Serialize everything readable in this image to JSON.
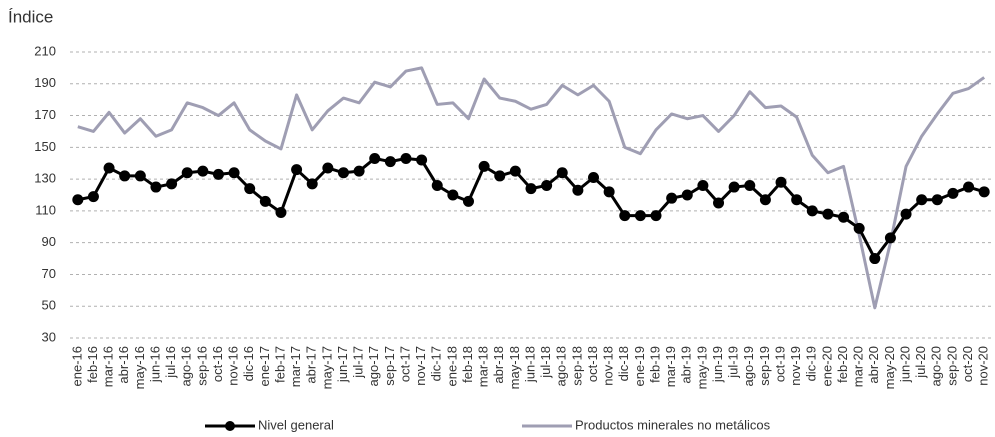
{
  "chart_data": {
    "type": "line",
    "y_label": "Índice",
    "categories": [
      "ene-16",
      "feb-16",
      "mar-16",
      "abr-16",
      "may-16",
      "jun-16",
      "jul-16",
      "ago-16",
      "sep-16",
      "oct-16",
      "nov-16",
      "dic-16",
      "ene-17",
      "feb-17",
      "mar-17",
      "abr-17",
      "may-17",
      "jun-17",
      "jul-17",
      "ago-17",
      "sep-17",
      "oct-17",
      "nov-17",
      "dic-17",
      "ene-18",
      "feb-18",
      "mar-18",
      "abr-18",
      "may-18",
      "jun-18",
      "jul-18",
      "ago-18",
      "sep-18",
      "oct-18",
      "nov-18",
      "dic-18",
      "ene-19",
      "feb-19",
      "mar-19",
      "abr-19",
      "may-19",
      "jun-19",
      "jul-19",
      "ago-19",
      "sep-19",
      "oct-19",
      "nov-19",
      "dic-19",
      "ene-20",
      "feb-20",
      "mar-20",
      "abr-20",
      "may-20",
      "jun-20",
      "jul-20",
      "ago-20",
      "sep-20",
      "oct-20",
      "nov-20"
    ],
    "series": [
      {
        "name": "Nivel general",
        "color": "#000000",
        "marker": "circle",
        "values": [
          117,
          119,
          137,
          132,
          132,
          125,
          127,
          134,
          135,
          133,
          134,
          124,
          116,
          109,
          136,
          127,
          137,
          134,
          135,
          143,
          141,
          143,
          142,
          126,
          120,
          116,
          138,
          132,
          135,
          124,
          126,
          134,
          123,
          131,
          122,
          107,
          107,
          107,
          118,
          120,
          126,
          115,
          125,
          126,
          117,
          128,
          117,
          110,
          108,
          106,
          99,
          80,
          93,
          108,
          117,
          117,
          121,
          125,
          122
        ]
      },
      {
        "name": "Productos minerales no metálicos",
        "color": "#9f9eb3",
        "marker": "none",
        "values": [
          163,
          160,
          172,
          159,
          168,
          157,
          161,
          178,
          175,
          170,
          178,
          161,
          154,
          149,
          183,
          161,
          173,
          181,
          178,
          191,
          188,
          198,
          200,
          177,
          178,
          168,
          193,
          181,
          179,
          174,
          177,
          189,
          183,
          189,
          179,
          150,
          146,
          161,
          171,
          168,
          170,
          160,
          170,
          185,
          175,
          176,
          169,
          145,
          134,
          138,
          95,
          49,
          90,
          138,
          157,
          171,
          184,
          187,
          194
        ]
      }
    ],
    "ylim": [
      30,
      210
    ],
    "yticks": [
      30,
      50,
      70,
      90,
      110,
      130,
      150,
      170,
      190,
      210
    ],
    "grid": true,
    "legend_position": "bottom"
  }
}
